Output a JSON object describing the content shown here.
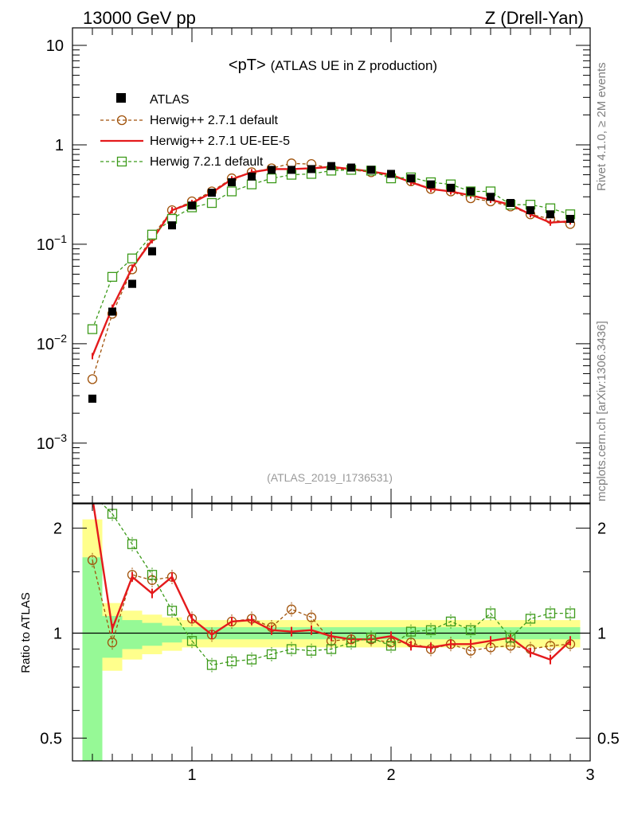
{
  "header": {
    "left": "13000 GeV pp",
    "right": "Z (Drell-Yan)"
  },
  "side_labels": {
    "rivet": "Rivet 4.1.0, ≥ 2M events",
    "mcplots": "mcplots.cern.ch [arXiv:1306.3436]"
  },
  "chart_data": [
    {
      "type": "line",
      "panel": "main",
      "title": "<pT>",
      "subtitle": "(ATLAS UE in Z production)",
      "watermark": "(ATLAS_2019_I1736531)",
      "yscale": "log",
      "ylim": [
        0.00025,
        15
      ],
      "xlim": [
        0.4,
        3.0
      ],
      "y_ticks": [
        {
          "value": 10,
          "label": "10"
        },
        {
          "value": 1,
          "label": "1"
        },
        {
          "value": 0.1,
          "label": "10",
          "sup": "−1"
        },
        {
          "value": 0.01,
          "label": "10",
          "sup": "−2"
        },
        {
          "value": 0.001,
          "label": "10",
          "sup": "−3"
        }
      ],
      "x": [
        0.5,
        0.6,
        0.7,
        0.8,
        0.9,
        1.0,
        1.1,
        1.2,
        1.3,
        1.4,
        1.5,
        1.6,
        1.7,
        1.8,
        1.9,
        2.0,
        2.1,
        2.2,
        2.3,
        2.4,
        2.5,
        2.6,
        2.7,
        2.8,
        2.9
      ],
      "legend_position": "top-left",
      "series": [
        {
          "name": "ATLAS",
          "style": "data",
          "color": "#000000",
          "values": [
            0.0028,
            0.021,
            0.04,
            0.085,
            0.155,
            0.245,
            0.33,
            0.42,
            0.48,
            0.56,
            0.56,
            0.57,
            0.61,
            0.59,
            0.56,
            0.51,
            0.46,
            0.4,
            0.37,
            0.34,
            0.3,
            0.26,
            0.22,
            0.2,
            0.18
          ]
        },
        {
          "name": "Herwig++ 2.7.1 default",
          "style": "circle-dashed",
          "color": "#a0520a",
          "values": [
            0.0044,
            0.02,
            0.056,
            0.12,
            0.22,
            0.27,
            0.34,
            0.46,
            0.53,
            0.58,
            0.65,
            0.64,
            0.58,
            0.56,
            0.53,
            0.48,
            0.43,
            0.36,
            0.34,
            0.29,
            0.27,
            0.24,
            0.2,
            0.18,
            0.16
          ]
        },
        {
          "name": "Herwig++ 2.7.1 UE-EE-5",
          "style": "solid",
          "color": "#e41a1c",
          "values": [
            0.0075,
            0.023,
            0.058,
            0.11,
            0.22,
            0.26,
            0.33,
            0.45,
            0.53,
            0.57,
            0.57,
            0.58,
            0.6,
            0.57,
            0.54,
            0.5,
            0.42,
            0.36,
            0.34,
            0.31,
            0.28,
            0.25,
            0.2,
            0.165,
            0.17
          ]
        },
        {
          "name": "Herwig 7.2.1 default",
          "style": "square-dashed",
          "color": "#3c9a1a",
          "values": [
            0.014,
            0.047,
            0.072,
            0.125,
            0.18,
            0.235,
            0.26,
            0.34,
            0.4,
            0.46,
            0.5,
            0.51,
            0.55,
            0.56,
            0.55,
            0.46,
            0.47,
            0.42,
            0.4,
            0.34,
            0.34,
            0.25,
            0.25,
            0.23,
            0.2
          ]
        }
      ]
    },
    {
      "type": "line",
      "panel": "ratio",
      "ylabel": "Ratio to ATLAS",
      "yscale": "log",
      "ylim": [
        0.43,
        2.35
      ],
      "xlim": [
        0.4,
        3.0
      ],
      "y_ticks": [
        {
          "value": 2,
          "label": "2"
        },
        {
          "value": 1,
          "label": "1"
        },
        {
          "value": 0.5,
          "label": "0.5"
        }
      ],
      "x_ticks": [
        {
          "value": 1,
          "label": "1"
        },
        {
          "value": 2,
          "label": "2"
        },
        {
          "value": 3,
          "label": "3"
        }
      ],
      "x": [
        0.5,
        0.6,
        0.7,
        0.8,
        0.9,
        1.0,
        1.1,
        1.2,
        1.3,
        1.4,
        1.5,
        1.6,
        1.7,
        1.8,
        1.9,
        2.0,
        2.1,
        2.2,
        2.3,
        2.4,
        2.5,
        2.6,
        2.7,
        2.8,
        2.9
      ],
      "bands": {
        "edges": [
          0.45,
          0.55,
          0.65,
          0.75,
          0.85,
          0.95,
          1.05,
          1.15,
          1.25,
          1.35,
          1.45,
          1.55,
          1.65,
          1.75,
          1.85,
          1.95,
          2.05,
          2.15,
          2.25,
          2.35,
          2.45,
          2.55,
          2.65,
          2.75,
          2.85,
          2.95
        ],
        "green_up": [
          1.65,
          1.12,
          1.09,
          1.07,
          1.05,
          1.04,
          1.04,
          1.04,
          1.04,
          1.04,
          1.04,
          1.04,
          1.04,
          1.04,
          1.04,
          1.04,
          1.04,
          1.04,
          1.04,
          1.04,
          1.04,
          1.04,
          1.04,
          1.04,
          1.04
        ],
        "green_down": [
          0.37,
          0.85,
          0.9,
          0.92,
          0.94,
          0.96,
          0.96,
          0.96,
          0.96,
          0.96,
          0.96,
          0.96,
          0.96,
          0.96,
          0.96,
          0.96,
          0.96,
          0.96,
          0.96,
          0.96,
          0.96,
          0.96,
          0.96,
          0.96,
          0.96
        ],
        "yellow_up": [
          2.12,
          1.22,
          1.16,
          1.13,
          1.11,
          1.09,
          1.09,
          1.09,
          1.09,
          1.09,
          1.09,
          1.09,
          1.09,
          1.09,
          1.09,
          1.09,
          1.09,
          1.09,
          1.09,
          1.09,
          1.09,
          1.09,
          1.09,
          1.09,
          1.09
        ],
        "yellow_down": [
          0.35,
          0.78,
          0.84,
          0.87,
          0.89,
          0.91,
          0.91,
          0.91,
          0.91,
          0.91,
          0.91,
          0.91,
          0.91,
          0.91,
          0.91,
          0.91,
          0.91,
          0.91,
          0.91,
          0.91,
          0.91,
          0.91,
          0.91,
          0.91,
          0.91
        ]
      },
      "series": [
        {
          "name": "Herwig++ 2.7.1 default",
          "style": "circle-dashed",
          "color": "#a0520a",
          "values": [
            1.62,
            0.94,
            1.47,
            1.42,
            1.45,
            1.1,
            0.99,
            1.08,
            1.1,
            1.04,
            1.17,
            1.11,
            0.95,
            0.96,
            0.96,
            0.94,
            0.94,
            0.9,
            0.93,
            0.89,
            0.91,
            0.92,
            0.9,
            0.92,
            0.93
          ]
        },
        {
          "name": "Herwig++ 2.7.1 UE-EE-5",
          "style": "solid",
          "color": "#e41a1c",
          "values": [
            2.45,
            1.03,
            1.45,
            1.3,
            1.45,
            1.1,
            0.99,
            1.08,
            1.09,
            1.02,
            1.01,
            1.02,
            0.98,
            0.96,
            0.96,
            0.98,
            0.92,
            0.91,
            0.93,
            0.93,
            0.95,
            0.97,
            0.88,
            0.84,
            0.95
          ]
        },
        {
          "name": "Herwig 7.2.1 default",
          "style": "square-dashed",
          "color": "#3c9a1a",
          "values": [
            2.5,
            2.2,
            1.8,
            1.47,
            1.16,
            0.95,
            0.81,
            0.83,
            0.84,
            0.87,
            0.9,
            0.89,
            0.9,
            0.94,
            0.97,
            0.92,
            1.01,
            1.02,
            1.08,
            1.02,
            1.14,
            0.97,
            1.1,
            1.14,
            1.14
          ]
        }
      ]
    }
  ]
}
